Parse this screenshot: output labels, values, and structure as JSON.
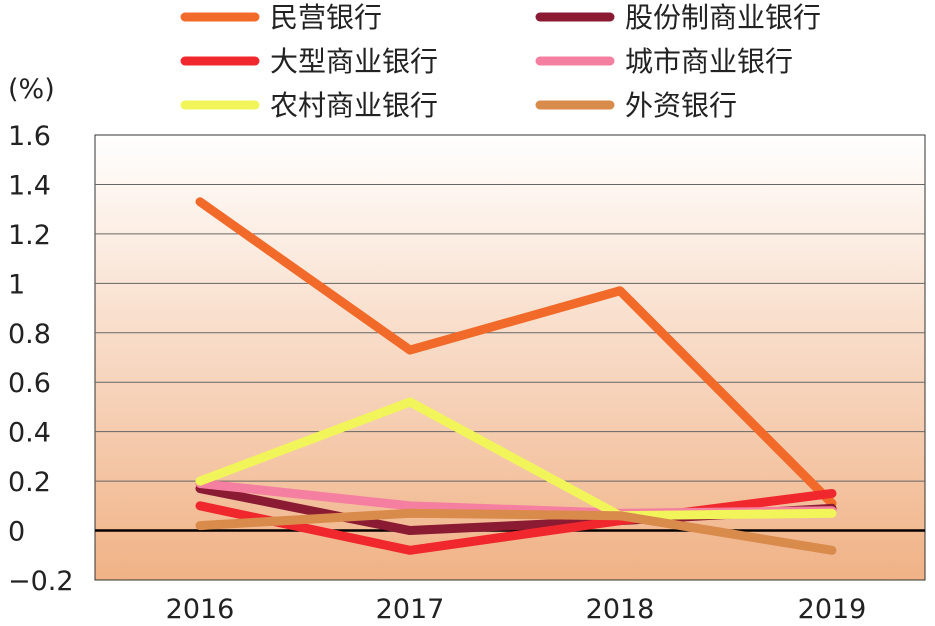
{
  "chart_data": {
    "type": "line",
    "ylabel": "(%)",
    "categories": [
      "2016",
      "2017",
      "2018",
      "2019"
    ],
    "ylim": [
      -0.2,
      1.6
    ],
    "yticks": [
      "1.6",
      "1.4",
      "1.2",
      "1",
      "0.8",
      "0.6",
      "0.4",
      "0.2",
      "0",
      "-0.2"
    ],
    "grid": true,
    "legend_position": "top",
    "series": [
      {
        "name": "民营银行",
        "color": "#f26a2a",
        "values": [
          1.33,
          0.73,
          0.97,
          0.11
        ]
      },
      {
        "name": "股份制商业银行",
        "color": "#8b1a33",
        "values": [
          0.17,
          0.0,
          0.04,
          0.09
        ]
      },
      {
        "name": "大型商业银行",
        "color": "#f0282d",
        "values": [
          0.1,
          -0.08,
          0.04,
          0.15
        ]
      },
      {
        "name": "城市商业银行",
        "color": "#f57fa0",
        "values": [
          0.19,
          0.1,
          0.07,
          0.08
        ]
      },
      {
        "name": "农村商业银行",
        "color": "#f2f55a",
        "values": [
          0.2,
          0.52,
          0.06,
          0.07
        ]
      },
      {
        "name": "外资银行",
        "color": "#d98b4c",
        "values": [
          0.02,
          0.07,
          0.06,
          -0.08
        ]
      }
    ]
  }
}
